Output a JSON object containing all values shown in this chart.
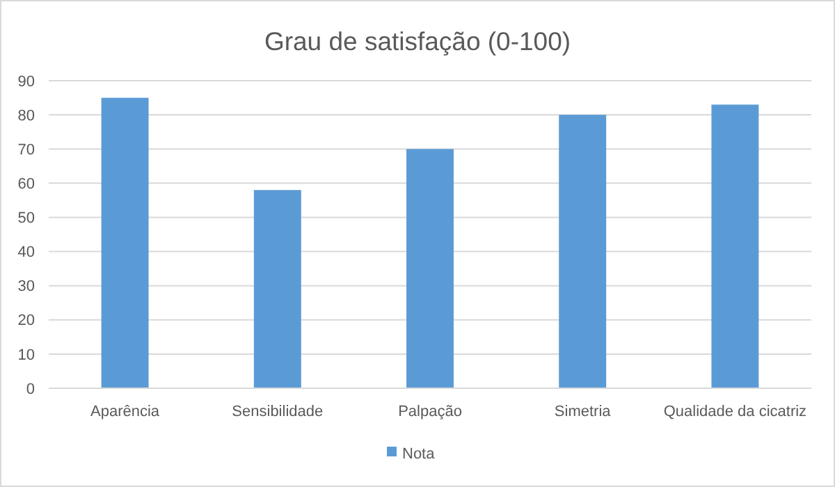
{
  "chart_data": {
    "type": "bar",
    "title": "Grau de satisfação (0-100)",
    "categories": [
      "Aparência",
      "Sensibilidade",
      "Palpação",
      "Simetria",
      "Qualidade da cicatriz"
    ],
    "series": [
      {
        "name": "Nota",
        "color": "#5b9bd5",
        "values": [
          85,
          58,
          70,
          80,
          83
        ]
      }
    ],
    "ylim": [
      0,
      90
    ],
    "yticks": [
      0,
      10,
      20,
      30,
      40,
      50,
      60,
      70,
      80,
      90
    ],
    "grid": "y",
    "legend": "bottom"
  }
}
